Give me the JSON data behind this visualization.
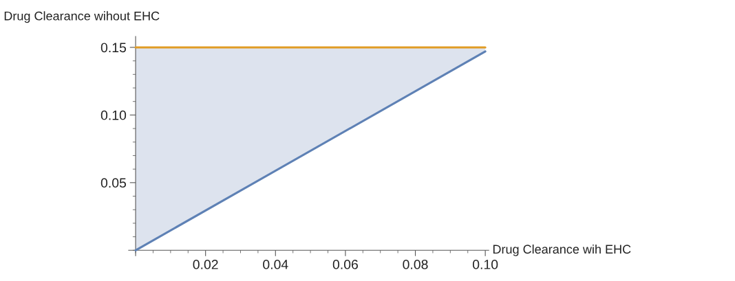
{
  "chart_data": {
    "type": "line",
    "xlabel": "Drug Clearance wih EHC",
    "ylabel": "Drug Clearance wihout EHC",
    "x": [
      0,
      0.1
    ],
    "series": [
      {
        "color": "#5e81b5",
        "values": [
          0,
          0.147
        ]
      },
      {
        "color": "#e19c24",
        "values": [
          0.15,
          0.15
        ],
        "lower": [
          0,
          0.147
        ],
        "upper": [
          0.15,
          0.15
        ]
      }
    ],
    "xlim": [
      -0.002,
      0.101
    ],
    "ylim": [
      -0.004,
      0.158
    ],
    "xticks": [
      0.02,
      0.04,
      0.06,
      0.08,
      {
        "value": 0.1,
        "label": "0.10"
      }
    ],
    "yticks": [
      0.05,
      {
        "value": 0.1,
        "label": "0.10"
      },
      0.15
    ],
    "grid": false,
    "legend": false
  }
}
